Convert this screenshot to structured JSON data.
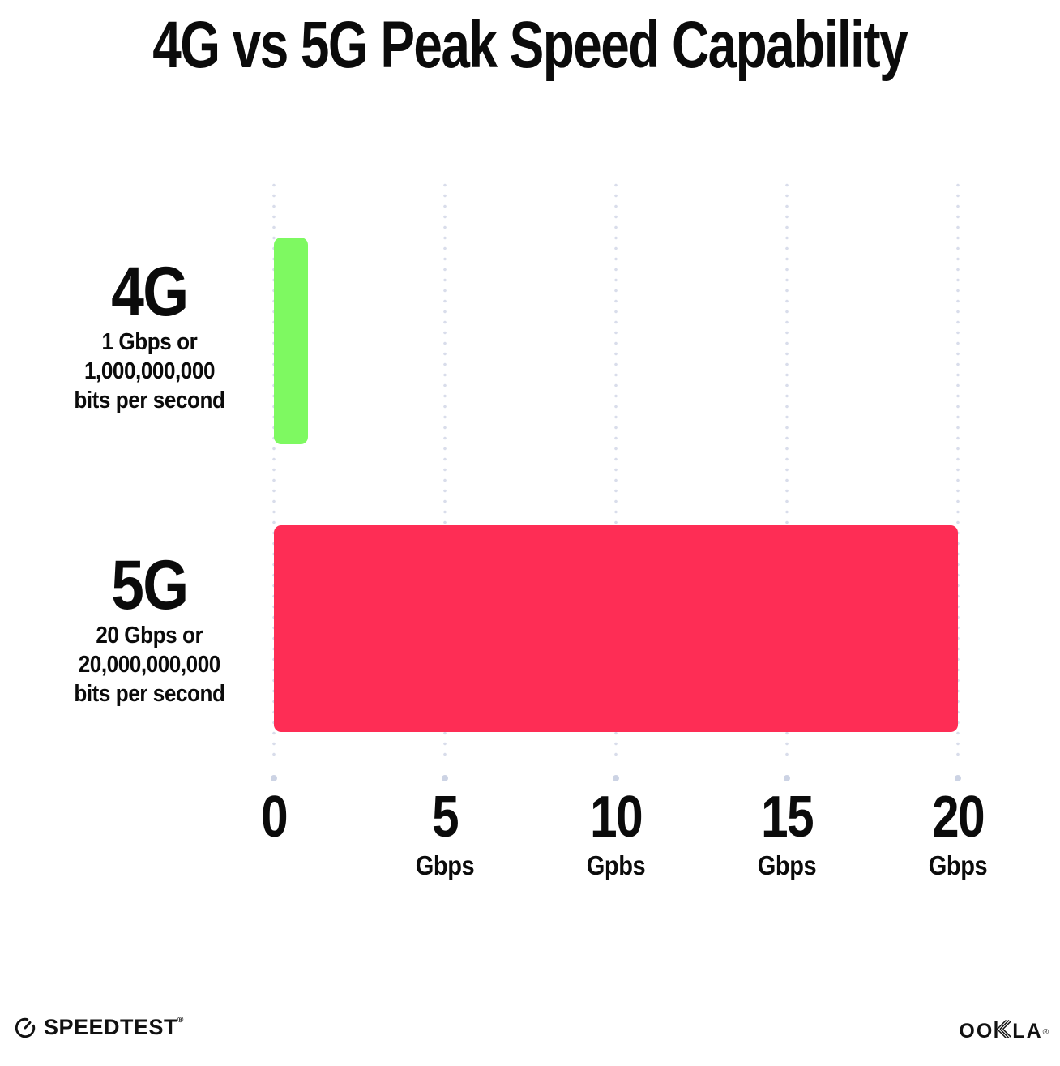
{
  "header": {
    "title": "4G vs 5G Peak Speed Capability"
  },
  "chart_data": {
    "type": "bar",
    "orientation": "horizontal",
    "title": "4G vs 5G Peak Speed Capability",
    "categories": [
      "4G",
      "5G"
    ],
    "values": [
      1,
      20
    ],
    "value_unit": "Gbps",
    "xlim": [
      0,
      20
    ],
    "xlabel": "",
    "ylabel": "",
    "grid": "vertical-dotted",
    "legend": "none",
    "bar_colors": [
      "#7EF961",
      "#FE2D55"
    ],
    "rows": [
      {
        "name": "4G",
        "value": 1,
        "lines": [
          "1 Gbps or",
          "1,000,000,000",
          "bits per second"
        ]
      },
      {
        "name": "5G",
        "value": 20,
        "lines": [
          "20 Gbps or",
          "20,000,000,000",
          "bits per second"
        ]
      }
    ],
    "x_ticks": [
      {
        "value": 0,
        "label": "0",
        "unit": ""
      },
      {
        "value": 5,
        "label": "5",
        "unit": "Gbps"
      },
      {
        "value": 10,
        "label": "10",
        "unit": "Gpbs"
      },
      {
        "value": 15,
        "label": "15",
        "unit": "Gbps"
      },
      {
        "value": 20,
        "label": "20",
        "unit": "Gbps"
      }
    ]
  },
  "footer": {
    "speedtest_wordmark": "SPEEDTEST",
    "speedtest_trademark": "®",
    "ookla_wordmark": "OOKLA",
    "ookla_prefix": "OO",
    "ookla_suffix": "LA",
    "ookla_trademark": "®"
  },
  "colors": {
    "background": "#ffffff",
    "title_text": "#0b0b0b",
    "bar_4g": "#7EF961",
    "bar_5g": "#FE2D55",
    "gridline_dots": "#d9ddeb",
    "axis_text": "#0b0b0b",
    "logo_text": "#111111"
  }
}
